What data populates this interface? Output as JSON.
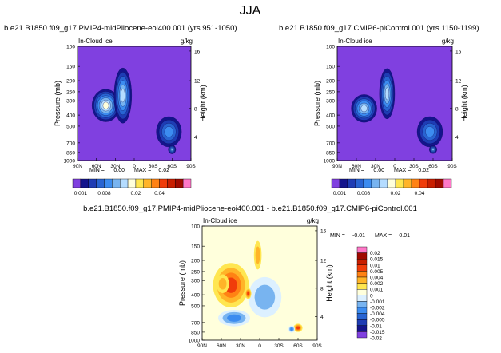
{
  "figure": {
    "title": "JJA"
  },
  "chart_data": [
    {
      "type": "heatmap",
      "title": "b.e21.B1850.f09_g17.PMIP4-midPliocene-eoi400.001 (yrs 951-1050)",
      "variable": "In-Cloud ice",
      "units": "g/kg",
      "xlabel": "",
      "ylabel": "Pressure (mb)",
      "ylabel_right": "Height (km)",
      "x_ticks": [
        "90N",
        "60N",
        "30N",
        "0",
        "30S",
        "60S",
        "90S"
      ],
      "y_ticks": [
        "100",
        "150",
        "200",
        "250",
        "300",
        "400",
        "500",
        "700",
        "850",
        "1000"
      ],
      "y_right_ticks": [
        "16",
        "12",
        "8",
        "4"
      ],
      "min": "0.00",
      "max": "0.02",
      "levels": [
        "0.001",
        "",
        "",
        "0.008",
        "",
        "",
        "",
        "0.02",
        "",
        "",
        "0.04",
        ""
      ],
      "colors": [
        "#8040e0",
        "#14148c",
        "#1e3cb4",
        "#2864d2",
        "#3c8cf0",
        "#78b4f0",
        "#b4dcff",
        "#ffffdc",
        "#ffe650",
        "#ffb428",
        "#ff8214",
        "#f03c0a",
        "#c81e00",
        "#a00a00",
        "#ff78c8"
      ],
      "blobs": [
        {
          "lat": 45,
          "p": 330,
          "rl": 22,
          "rp": 190,
          "level": 7
        },
        {
          "lat": 18,
          "p": 270,
          "rl": 14,
          "rp": 260,
          "level": 6
        },
        {
          "lat": -55,
          "p": 560,
          "rl": 20,
          "rp": 300,
          "level": 4
        },
        {
          "lat": -60,
          "p": 800,
          "rl": 6,
          "rp": 90,
          "level": 5
        }
      ]
    },
    {
      "type": "heatmap",
      "title": "b.e21.B1850.f09_g17.CMIP6-piControl.001 (yrs 1150-1199)",
      "variable": "In-Cloud ice",
      "units": "g/kg",
      "xlabel": "",
      "ylabel": "Pressure (mb)",
      "ylabel_right": "Height (km)",
      "x_ticks": [
        "90N",
        "60N",
        "30N",
        "0",
        "30S",
        "60S",
        "90S"
      ],
      "y_ticks": [
        "100",
        "150",
        "200",
        "250",
        "300",
        "400",
        "500",
        "700",
        "850",
        "1000"
      ],
      "y_right_ticks": [
        "16",
        "12",
        "8",
        "4"
      ],
      "min": "0.00",
      "max": "0.02",
      "levels": [
        "0.001",
        "",
        "",
        "0.008",
        "",
        "",
        "",
        "0.02",
        "",
        "",
        "0.04",
        ""
      ],
      "colors": [
        "#8040e0",
        "#14148c",
        "#1e3cb4",
        "#2864d2",
        "#3c8cf0",
        "#78b4f0",
        "#b4dcff",
        "#ffffdc",
        "#ffe650",
        "#ffb428",
        "#ff8214",
        "#f03c0a",
        "#c81e00",
        "#a00a00",
        "#ff78c8"
      ],
      "blobs": [
        {
          "lat": 48,
          "p": 350,
          "rl": 20,
          "rp": 170,
          "level": 6
        },
        {
          "lat": 12,
          "p": 260,
          "rl": 12,
          "rp": 230,
          "level": 6
        },
        {
          "lat": -55,
          "p": 560,
          "rl": 20,
          "rp": 300,
          "level": 4
        },
        {
          "lat": -60,
          "p": 800,
          "rl": 6,
          "rp": 80,
          "level": 5
        }
      ]
    },
    {
      "type": "heatmap",
      "title": "b.e21.B1850.f09_g17.PMIP4-midPliocene-eoi400.001 - b.e21.B1850.f09_g17.CMIP6-piControl.001",
      "variable": "In-Cloud ice",
      "units": "g/kg",
      "xlabel": "",
      "ylabel": "Pressure (mb)",
      "ylabel_right": "Height (km)",
      "x_ticks": [
        "90N",
        "60N",
        "30N",
        "0",
        "30S",
        "60S",
        "90S"
      ],
      "y_ticks": [
        "100",
        "150",
        "200",
        "250",
        "300",
        "400",
        "500",
        "700",
        "850",
        "1000"
      ],
      "y_right_ticks": [
        "16",
        "12",
        "8",
        "4"
      ],
      "min": "-0.01",
      "max": "0.01",
      "levels": [
        "0.02",
        "0.015",
        "0.01",
        "0.005",
        "0.004",
        "0.002",
        "0.001",
        "0",
        "-0.001",
        "-0.002",
        "-0.004",
        "-0.005",
        "-0.01",
        "-0.015",
        "-0.02"
      ],
      "colors": [
        "#ff78c8",
        "#a00a00",
        "#c81e00",
        "#f03c0a",
        "#ff8214",
        "#ffb428",
        "#ffe650",
        "#ffffdc",
        "#dcf0ff",
        "#78b4f0",
        "#3c8cf0",
        "#2864d2",
        "#1e3cb4",
        "#14148c",
        "#8040e0"
      ],
      "blobs": [
        {
          "lat": 45,
          "p": 330,
          "rl": 28,
          "rp": 260,
          "sign": 1,
          "level": 4
        },
        {
          "lat": 58,
          "p": 320,
          "rl": 10,
          "rp": 100,
          "sign": 1,
          "level": 2
        },
        {
          "lat": 3,
          "p": 180,
          "rl": 6,
          "rp": 90,
          "sign": 1,
          "level": 2
        },
        {
          "lat": -8,
          "p": 420,
          "rl": 26,
          "rp": 300,
          "sign": -1,
          "level": 2
        },
        {
          "lat": 18,
          "p": 390,
          "rl": 5,
          "rp": 60,
          "sign": 1,
          "level": 4
        },
        {
          "lat": 40,
          "p": 640,
          "rl": 25,
          "rp": 170,
          "sign": -1,
          "level": 3
        },
        {
          "lat": -60,
          "p": 780,
          "rl": 7,
          "rp": 80,
          "sign": 1,
          "level": 4
        },
        {
          "lat": -50,
          "p": 800,
          "rl": 5,
          "rp": 60,
          "sign": -1,
          "level": 3
        }
      ]
    }
  ]
}
